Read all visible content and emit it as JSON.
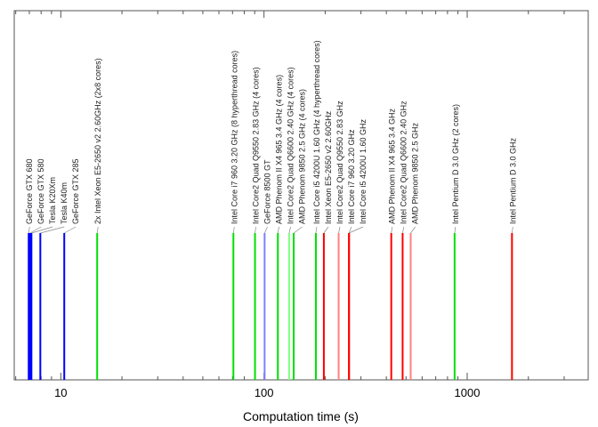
{
  "chart_data": {
    "type": "bar",
    "title": "",
    "xlabel": "Computation time (s)",
    "ylabel": "",
    "xscale": "log",
    "xlim": [
      5.9,
      3940
    ],
    "xticks": [
      {
        "value": 10,
        "label": "10"
      },
      {
        "value": 100,
        "label": "100"
      },
      {
        "value": 1000,
        "label": "1000"
      }
    ],
    "grid": false,
    "colors": {
      "gpu": "#0000ff",
      "multi_core": "#00e000",
      "single_core": "#ff0000",
      "gpu_light": "#7f7fff",
      "multi_light": "#80ff80",
      "single_light": "#ff8080"
    },
    "items": [
      {
        "label": "GeForce GTX 680",
        "value": 6.95,
        "kind": "gpu"
      },
      {
        "label": "GeForce GTX 580",
        "value": 7.05,
        "kind": "gpu"
      },
      {
        "label": "Tesla K20Xm",
        "value": 7.17,
        "kind": "gpu"
      },
      {
        "label": "Tesla K40m",
        "value": 7.93,
        "kind": "gpu"
      },
      {
        "label": "GeForce GTX 285",
        "value": 10.4,
        "kind": "gpu"
      },
      {
        "label": "2x Intel Xeon E5-2650 v2 2.60GHz (2x8 cores)",
        "value": 15.1,
        "kind": "multi_core"
      },
      {
        "label": "Intel Core i7 960 3.20 GHz (8 hyperthread cores)",
        "value": 70.7,
        "kind": "multi_core"
      },
      {
        "label": "Intel Core2 Quad Q9550 2.83 GHz (4 cores)",
        "value": 90.3,
        "kind": "multi_core"
      },
      {
        "label": "GeForce 8500 GT",
        "value": 100.7,
        "kind": "gpu_light"
      },
      {
        "label": "AMD Phenom II X4 965 3.4 GHz (4 cores)",
        "value": 117,
        "kind": "multi_core"
      },
      {
        "label": "Intel Core2 Quad Q6600 2.40 GHz (4 cores)",
        "value": 133,
        "kind": "multi_light"
      },
      {
        "label": "AMD Phenom 9850 2.5 GHz (4 cores)",
        "value": 140,
        "kind": "multi_core"
      },
      {
        "label": "Intel Core i5 4200U 1.60 GHz (4 hyperthread cores)",
        "value": 180,
        "kind": "multi_core"
      },
      {
        "label": "Intel Xeon E5-2650 v2 2.60GHz",
        "value": 197,
        "kind": "single_core"
      },
      {
        "label": "Intel Core2 Quad Q9550 2.83 GHz",
        "value": 233,
        "kind": "single_light"
      },
      {
        "label": "Intel Core i7 960 3.20 GHz",
        "value": 262,
        "kind": "single_core"
      },
      {
        "label": "Intel Core i5 4200U 1.60 GHz",
        "value": 262,
        "kind": "single_core"
      },
      {
        "label": "AMD Phenom II X4 965 3.4 GHz",
        "value": 423,
        "kind": "single_core"
      },
      {
        "label": "Intel Core2 Quad Q6600 2.40 GHz",
        "value": 481,
        "kind": "single_core"
      },
      {
        "label": "AMD Phenom 9850 2.5 GHz",
        "value": 527,
        "kind": "single_light"
      },
      {
        "label": "Intel Pentium D 3.0 GHz (2 cores)",
        "value": 867,
        "kind": "multi_core"
      },
      {
        "label": "Intel Pentium D 3.0 GHz",
        "value": 1661,
        "kind": "single_core"
      }
    ]
  }
}
